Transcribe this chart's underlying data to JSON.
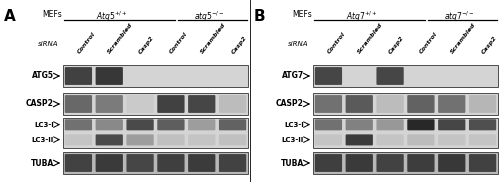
{
  "fig_width": 5.0,
  "fig_height": 1.82,
  "dpi": 100,
  "bg_color": "#ffffff",
  "panel_sep": 0.5,
  "panels": [
    {
      "letter": "A",
      "group1": "Atg5",
      "group2": "atg5",
      "gene1_label": "$\\mathbf{\\mathit{Atg5}}^{+/+}$",
      "gene2_label": "$\\mathit{atg5}^{-/-}$",
      "row0_label": "ATG5",
      "row_labels": [
        "ATG5",
        "CASP2",
        "TUBA"
      ],
      "lc3_label": true,
      "atg_row_bands": [
        0.75,
        0.8,
        0.0,
        0.0,
        0.0,
        0.0
      ],
      "casp2_bands": [
        0.55,
        0.45,
        0.05,
        0.75,
        0.72,
        0.12
      ],
      "lc3I_bands": [
        0.5,
        0.38,
        0.7,
        0.6,
        0.28,
        0.58
      ],
      "lc3II_bands": [
        0.08,
        0.7,
        0.28,
        0.1,
        0.08,
        0.1
      ],
      "tuba_bands": [
        0.7,
        0.75,
        0.68,
        0.72,
        0.74,
        0.7
      ]
    },
    {
      "letter": "B",
      "group1": "Atg7",
      "group2": "atg7",
      "gene1_label": "$\\mathbf{\\mathit{Atg7}}^{+/+}$",
      "gene2_label": "$\\mathit{atg7}^{-/-}$",
      "row0_label": "ATG7",
      "row_labels": [
        "ATG7",
        "CASP2",
        "TUBA"
      ],
      "lc3_label": true,
      "atg_row_bands": [
        0.72,
        0.0,
        0.72,
        0.0,
        0.0,
        0.0
      ],
      "casp2_bands": [
        0.5,
        0.62,
        0.12,
        0.58,
        0.5,
        0.15
      ],
      "lc3I_bands": [
        0.5,
        0.42,
        0.3,
        0.88,
        0.72,
        0.68
      ],
      "lc3II_bands": [
        0.08,
        0.78,
        0.08,
        0.12,
        0.08,
        0.08
      ],
      "tuba_bands": [
        0.72,
        0.75,
        0.7,
        0.73,
        0.76,
        0.71
      ]
    }
  ],
  "col_labels": [
    "Control",
    "Scrambled",
    "Casp2",
    "Control",
    "Scrambled",
    "Casp2"
  ],
  "blot_bg_light": "#d4d4d4",
  "blot_bg_tuba": "#b8b8b8",
  "band_dark": "#101010",
  "band_edge": "none"
}
